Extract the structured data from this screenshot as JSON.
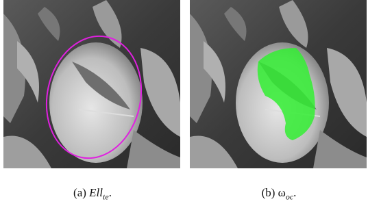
{
  "panels": [
    {
      "label": "(a)",
      "symbol": "Ell",
      "subscript": "te",
      "end": "."
    },
    {
      "label": "(b)",
      "symbol": "ω",
      "subscript": "oc",
      "end": "."
    }
  ]
}
